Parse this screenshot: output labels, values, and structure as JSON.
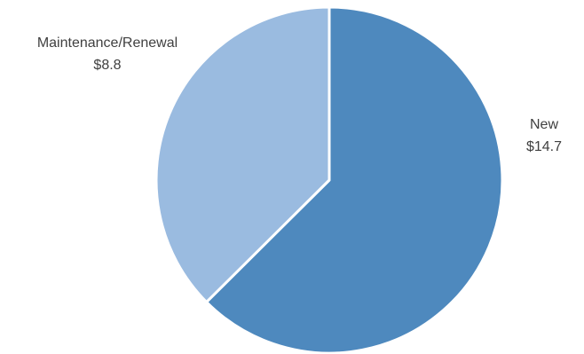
{
  "chart_data": {
    "type": "pie",
    "title": "",
    "series": [
      {
        "values": [
          14.7,
          8.8
        ]
      }
    ],
    "categories": [
      "New",
      "Maintenance/Renewal"
    ],
    "values": [
      14.7,
      8.8
    ],
    "data_labels": [
      "$14.7",
      "$8.8"
    ],
    "colors": [
      "#4E89BE",
      "#9ABBE0"
    ],
    "start_angle_deg": 0,
    "direction": "clockwise",
    "legend": "none"
  },
  "labels": {
    "new": {
      "name": "New",
      "value": "$14.7"
    },
    "maintenance": {
      "name": "Maintenance/Renewal",
      "value": "$8.8"
    }
  }
}
